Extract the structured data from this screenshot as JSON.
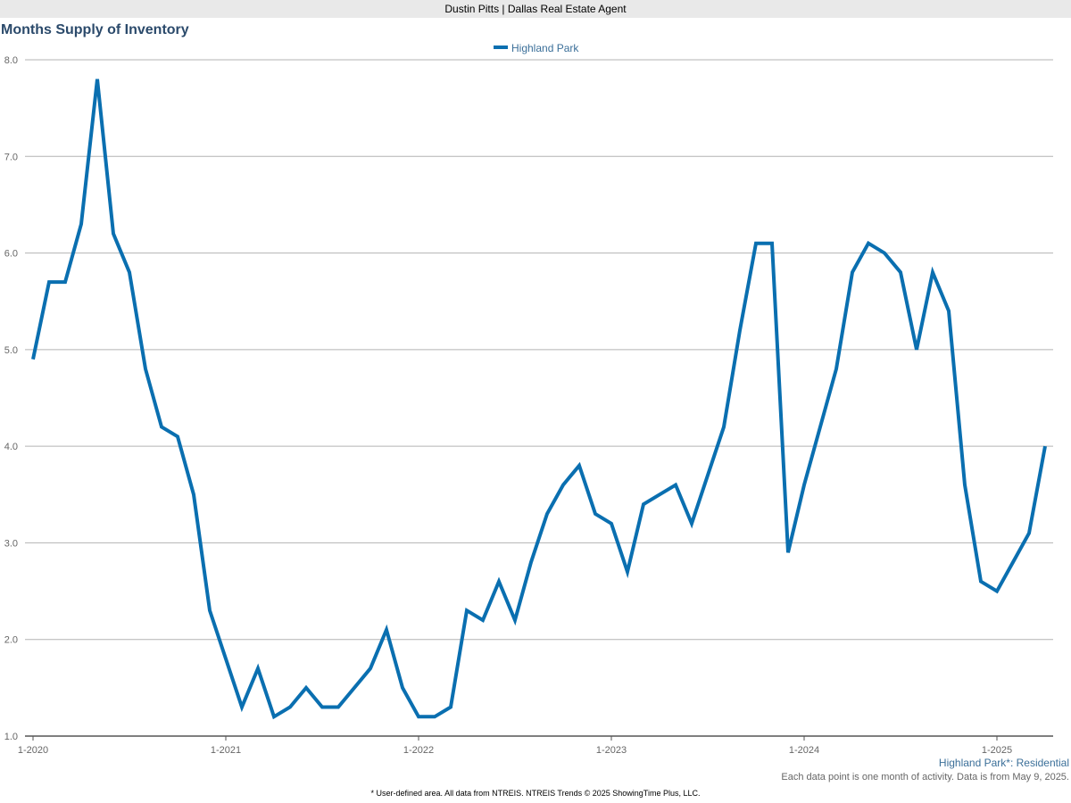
{
  "header": {
    "agent_label": "Dustin Pitts | Dallas Real Estate Agent"
  },
  "chart_title": "Months Supply of Inventory",
  "area_label": "Highland Park*: Residential",
  "note": "Each data point is one month of activity. Data is from May 9, 2025.",
  "footer": "* User-defined area. All data from NTREIS. NTREIS Trends © 2025 ShowingTime Plus, LLC.",
  "colors": {
    "series": "#0a6fb0",
    "grid": "#b3b3b3",
    "axis": "#666666",
    "legend_text": "#3b6f99"
  },
  "chart_data": {
    "type": "line",
    "title": "Months Supply of Inventory",
    "xlabel": "",
    "ylabel": "",
    "ylim": [
      1.0,
      8.0
    ],
    "y_ticks": [
      "1.0",
      "2.0",
      "3.0",
      "4.0",
      "5.0",
      "6.0",
      "7.0",
      "8.0"
    ],
    "x_ticks": [
      "1-2020",
      "1-2021",
      "1-2022",
      "1-2023",
      "1-2024",
      "1-2025"
    ],
    "grid": true,
    "legend_position": "top-center",
    "x": [
      "2020-01",
      "2020-02",
      "2020-03",
      "2020-04",
      "2020-05",
      "2020-06",
      "2020-07",
      "2020-08",
      "2020-09",
      "2020-10",
      "2020-11",
      "2020-12",
      "2021-01",
      "2021-02",
      "2021-03",
      "2021-04",
      "2021-05",
      "2021-06",
      "2021-07",
      "2021-08",
      "2021-09",
      "2021-10",
      "2021-11",
      "2021-12",
      "2022-01",
      "2022-02",
      "2022-03",
      "2022-04",
      "2022-05",
      "2022-06",
      "2022-07",
      "2022-08",
      "2022-09",
      "2022-10",
      "2022-11",
      "2022-12",
      "2023-01",
      "2023-02",
      "2023-03",
      "2023-04",
      "2023-05",
      "2023-06",
      "2023-07",
      "2023-08",
      "2023-09",
      "2023-10",
      "2023-11",
      "2023-12",
      "2024-01",
      "2024-02",
      "2024-03",
      "2024-04",
      "2024-05",
      "2024-06",
      "2024-07",
      "2024-08",
      "2024-09",
      "2024-10",
      "2024-11",
      "2024-12",
      "2025-01",
      "2025-02",
      "2025-03",
      "2025-04"
    ],
    "series": [
      {
        "name": "Highland Park",
        "values": [
          4.9,
          5.7,
          5.7,
          6.3,
          7.8,
          6.2,
          5.8,
          4.8,
          4.2,
          4.1,
          3.5,
          2.3,
          1.8,
          1.3,
          1.7,
          1.2,
          1.3,
          1.5,
          1.3,
          1.3,
          1.5,
          1.7,
          2.1,
          1.5,
          1.2,
          1.2,
          1.3,
          2.3,
          2.2,
          2.6,
          2.2,
          2.8,
          3.3,
          3.6,
          3.8,
          3.3,
          3.2,
          2.7,
          3.4,
          3.5,
          3.6,
          3.2,
          3.7,
          4.2,
          5.2,
          6.1,
          6.1,
          2.9,
          3.6,
          4.2,
          4.8,
          5.8,
          6.1,
          6.0,
          5.8,
          5.0,
          5.8,
          5.4,
          3.6,
          2.6,
          2.5,
          2.8,
          3.1,
          4.0
        ]
      }
    ]
  }
}
